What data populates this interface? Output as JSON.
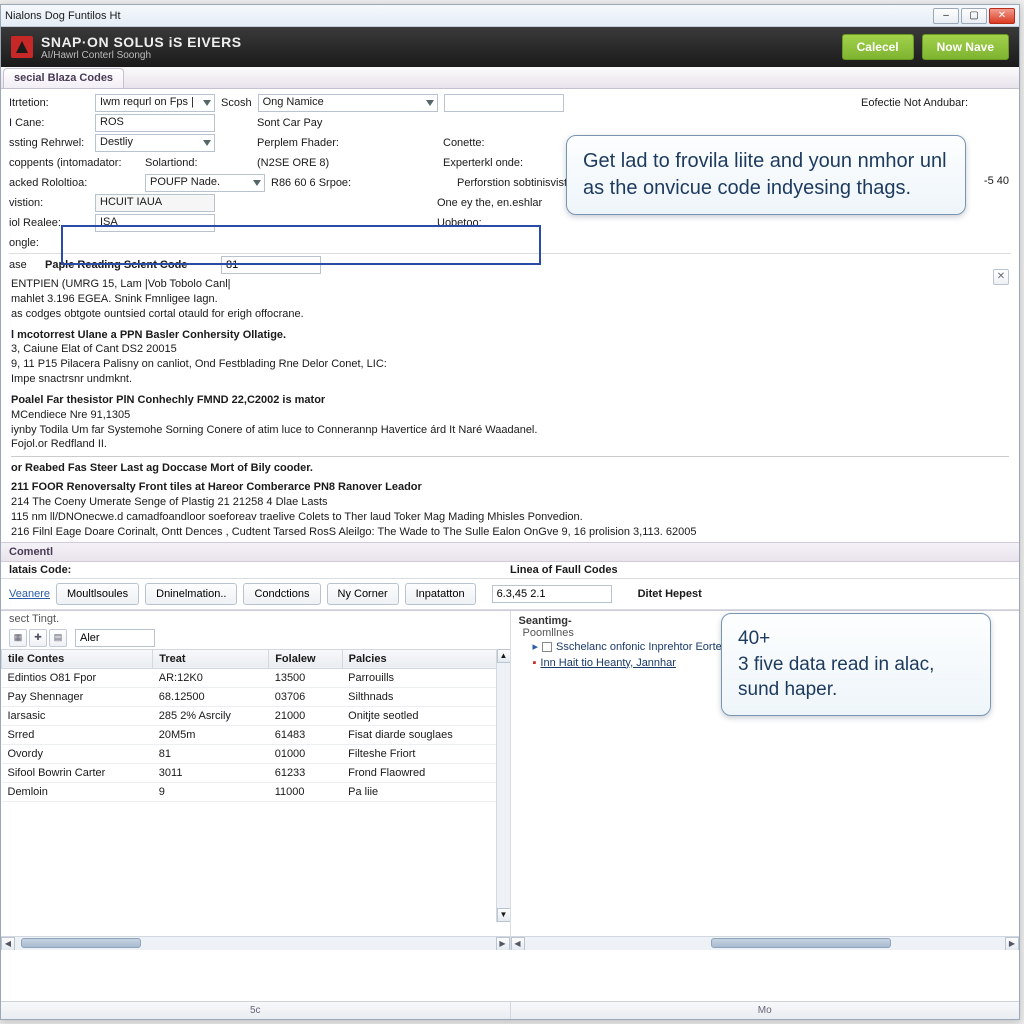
{
  "window": {
    "title": "Nialons Dog Funtilos Ht"
  },
  "brand": {
    "line1": "SNAP·ON SOLUS iS EIVERS",
    "line2": "AI/Hawrl Conterl Soongh"
  },
  "brand_buttons": {
    "cancel": "Calecel",
    "new": "Now Nave"
  },
  "tab_main": "secial Blaza Codes",
  "form": {
    "r1": {
      "l1": "Itrtetion:",
      "v1": "Iwm requrl on Fps |",
      "l2": "Scosh",
      "v2": "Ong Namice"
    },
    "r2": {
      "l1": "I Cane:",
      "v1": "ROS",
      "c3": "Sont Car Pay"
    },
    "r3": {
      "l1": "ssting Rehrwel:",
      "v1": "Destliy",
      "c3": "Perplem Fhader:",
      "l4": "Conette:"
    },
    "r4": {
      "l1": "coppents (intomadator:",
      "v1": "Solartiond:",
      "c3": "(N2SE ORE 8)",
      "l4": "Experterkl onde:"
    },
    "r5": {
      "l1": "acked Rololtioa:",
      "v1": "POUFP Nade.",
      "c3": "R86 60 6 Srpoe:",
      "l4": "Perforstion sobtinisvist",
      "extra": "-5 40"
    },
    "r6": {
      "l1": "vistion:",
      "v1": "HCUIT IAUA",
      "c3": "",
      "l4": "One ey the, en.eshlar"
    },
    "r7": {
      "l1": "iol Realee:",
      "v1": "ISA",
      "c3": "Uobetoo:"
    },
    "r8": {
      "l1": "ongle:"
    },
    "r9": {
      "tab1": "ase",
      "tab2": "Paple Reading Sclent Code",
      "v": "81"
    }
  },
  "right_label": "Eofectie Not Andubar:",
  "callout1": "Get lad to frovila liite and youn nmhor unl as the onvicue code indyesing thags.",
  "callout2": {
    "line1": "40+",
    "line2": "3 five data read in alac, sund haper."
  },
  "desc": {
    "l1": "ENTPIEN (UMRG 15, Lam |Vob Tobolo Canl|",
    "l2": "mahlet 3.196 EGEA. Snink Fmnligee Iagn.",
    "l3": "as codges obtgote ountsied cortal otauld for erigh offocrane.",
    "h1": "l mcotorrest Ulane a PPN Basler Conhersity Ollatige.",
    "l4": "3, Caiune Elat of Cant DS2 20015",
    "l5": "9, 11 P15 Pilacera Palisny on canliot, Ond Festblading Rne Delor Conet, LIC:",
    "l6": "Impe snactrsnr undmknt.",
    "h2": "Poalel Far thesistor PlN Conhechly FMND 22,C2002 is mator",
    "l7": "MCendiece Nre 91,1305",
    "l8": "iynby Todila Um far Systemohe Sorning Conere of atim luce to Connerannp Havertice árd It Naré Waadanel.",
    "l9": "Fojol.or Redfland II.",
    "h3": "or Reabed Fas Steer Last ag Doccase Mort of Bily cooder.",
    "h4": "211 FOOR Renoversalty Front tiles at Hareor Comberarce PN8 Ranover Leador",
    "l10": "214 The Coeny Umerate Senge of Plastig 21 21258 4 Dlae Lasts",
    "l11": "115 nm ll/DNOnecwe.d camadfoandloor soeforeav traelive Colets to Ther laud Toker Mag Mading Mhisles Ponvedion.",
    "l12": "216 Filnl Eage Doare Corinalt, Ontt Dences , Cudtent Tarsed RosS Aleilgo: The Wade to The Sulle Ealon OnGve 9, 16 prolision 3,113. 62005"
  },
  "strip_comment": "Comentl",
  "left_header": "latais Code:",
  "right_header": "Linea of Faull Codes",
  "toolbar": {
    "l_link": "Veanere",
    "b1": "Moultlsoules",
    "b2": "Dninelmation..",
    "b3": "Condctions",
    "b4": "Ny Corner",
    "b5": "Inpatatton",
    "r_val": "6.3,45 2.1",
    "r_lbl": "Ditet Hepest"
  },
  "mini_label": "Aler",
  "tree": {
    "h": "Seantimg-",
    "sub": "Poomllnes",
    "i1": "Sschelanc onfonic Inprehtor Eorter Pa",
    "i2": "Inn Hait tio Heanty, Jannhar"
  },
  "table": {
    "cols": [
      "tile Contes",
      "Treat",
      "Folalew",
      "Palcies"
    ],
    "row_lbl": "sect Tingt.",
    "rows": [
      [
        "Edintios O81 Fpor",
        "AR:12K0",
        "13500",
        "Parrouills"
      ],
      [
        "Pay Shennager",
        "68.12500",
        "03706",
        "Silthnads"
      ],
      [
        "Iarsasic",
        "285 2% Asrcily",
        "21000",
        "Onitjte seotled"
      ],
      [
        "Srred",
        "20M5m",
        "61483",
        "Fisat diarde souglaes"
      ],
      [
        "Ovordy",
        "81",
        "01000",
        "Filteshe Friort"
      ],
      [
        "Sifool Bowrin Carter",
        "3011",
        "61233",
        "Frond Flaowred"
      ],
      [
        "Demloin",
        "9",
        "11000",
        "Pa liie"
      ]
    ]
  },
  "status": {
    "left": "5c",
    "right": "Mo"
  }
}
